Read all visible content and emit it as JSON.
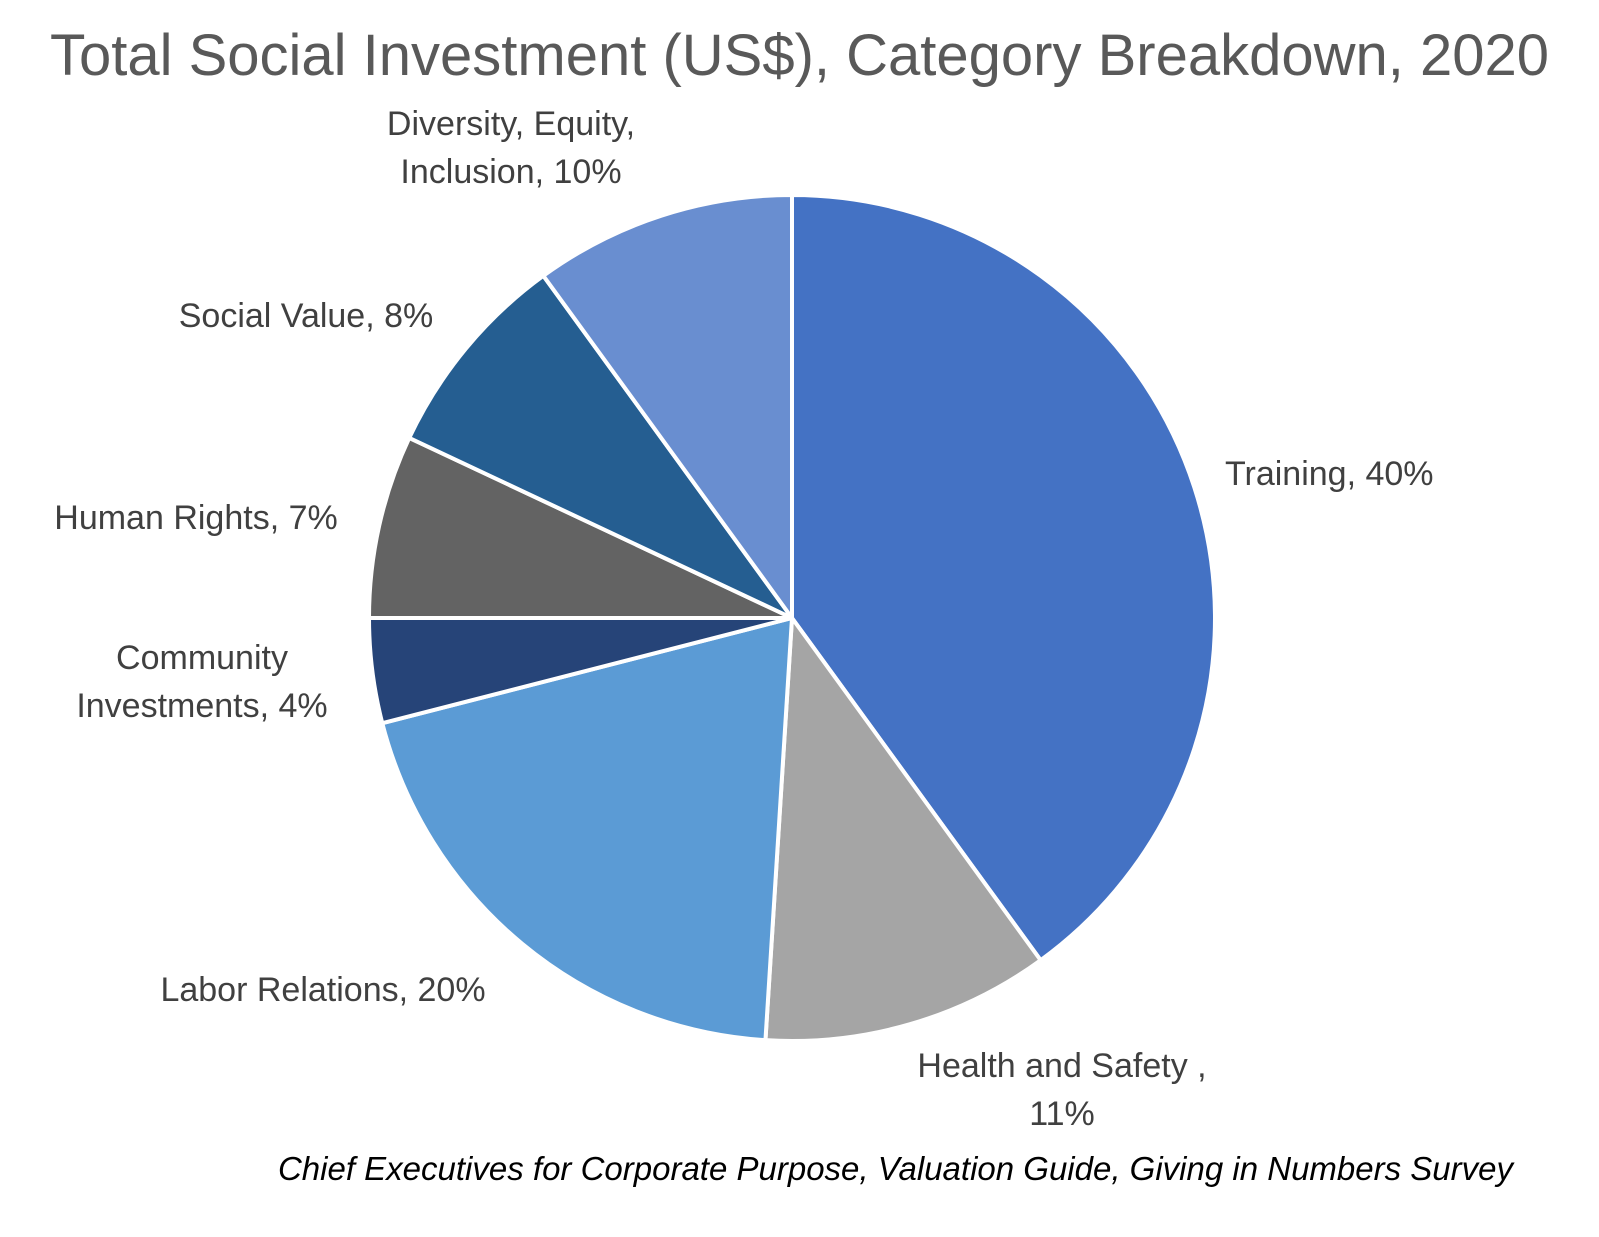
{
  "chart_data": {
    "type": "pie",
    "title": "Total Social Investment (US$), Category Breakdown, 2020",
    "source": "Chief Executives for Corporate Purpose, Valuation Guide, Giving in Numbers Survey",
    "start_angle_deg": 0,
    "direction": "clockwise",
    "slices": [
      {
        "category": "Training",
        "value": 40,
        "label_lines": [
          "Training, 40%"
        ],
        "color": "#4472C4"
      },
      {
        "category": "Health and Safety",
        "value": 11,
        "label_lines": [
          "Health and Safety ,",
          "11%"
        ],
        "color": "#A5A5A5"
      },
      {
        "category": "Labor Relations",
        "value": 20,
        "label_lines": [
          "Labor Relations, 20%"
        ],
        "color": "#5B9BD5"
      },
      {
        "category": "Community Investments",
        "value": 4,
        "label_lines": [
          "Community",
          "Investments, 4%"
        ],
        "color": "#264478"
      },
      {
        "category": "Human Rights",
        "value": 7,
        "label_lines": [
          "Human Rights, 7%"
        ],
        "color": "#636363"
      },
      {
        "category": "Social Value",
        "value": 8,
        "label_lines": [
          "Social Value, 8%"
        ],
        "color": "#255E91"
      },
      {
        "category": "Diversity, Equity, Inclusion",
        "value": 10,
        "label_lines": [
          "Diversity, Equity,",
          "Inclusion, 10%"
        ],
        "color": "#698ED0"
      }
    ]
  }
}
